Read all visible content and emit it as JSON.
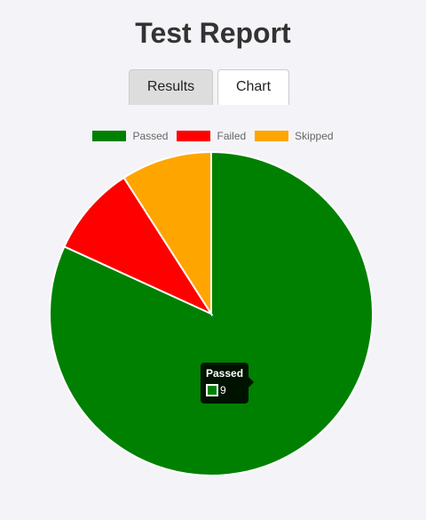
{
  "header": {
    "title": "Test Report"
  },
  "tabs": [
    {
      "label": "Results",
      "active": false
    },
    {
      "label": "Chart",
      "active": true
    }
  ],
  "chart_data": {
    "type": "pie",
    "categories": [
      "Passed",
      "Failed",
      "Skipped"
    ],
    "values": [
      9,
      1,
      1
    ],
    "colors": [
      "#008000",
      "#ff0000",
      "#ffa500"
    ],
    "legend_position": "top",
    "tooltip": {
      "title": "Passed",
      "value": "9",
      "color": "#008000"
    }
  }
}
